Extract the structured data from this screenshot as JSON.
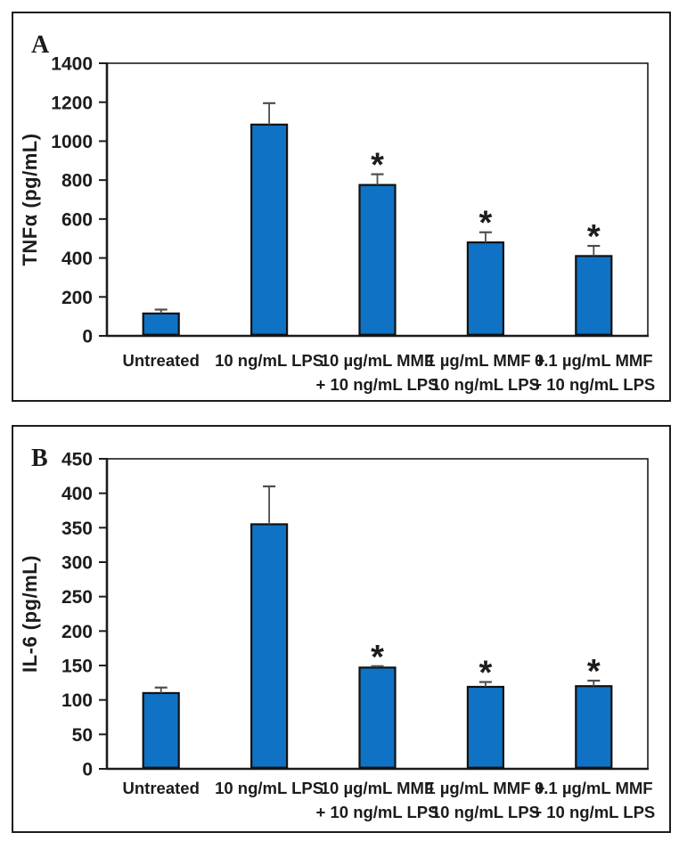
{
  "figure_description": "Two-panel bar chart figure",
  "chart_data": [
    {
      "type": "bar",
      "panel_label": "A",
      "title": "",
      "xlabel": "",
      "ylabel": "TNFα (pg/mL)",
      "ylim": [
        0,
        1400
      ],
      "yticks": [
        0,
        200,
        400,
        600,
        800,
        1000,
        1200,
        1400
      ],
      "grid": false,
      "legend_position": "none",
      "categories": [
        "Untreated",
        "10 ng/mL LPS",
        "10 µg/mL MMF + 10 ng/mL LPS",
        "1 µg/mL MMF + 10 ng/mL LPS",
        "0.1 µg/mL MMF + 10 ng/mL LPS"
      ],
      "category_lines": [
        [
          "Untreated",
          ""
        ],
        [
          "10 ng/mL LPS",
          ""
        ],
        [
          "10 µg/mL MMF",
          "+ 10 ng/mL LPS"
        ],
        [
          "1 µg/mL MMF +",
          "10 ng/mL LPS"
        ],
        [
          "0.1 µg/mL MMF",
          "+ 10 ng/mL LPS"
        ]
      ],
      "values": [
        115,
        1085,
        775,
        480,
        410
      ],
      "errors": [
        20,
        110,
        55,
        52,
        52
      ],
      "significance": [
        "",
        "",
        "*",
        "*",
        "*"
      ]
    },
    {
      "type": "bar",
      "panel_label": "B",
      "title": "",
      "xlabel": "",
      "ylabel": "IL-6 (pg/mL)",
      "ylim": [
        0,
        450
      ],
      "yticks": [
        0,
        50,
        100,
        150,
        200,
        250,
        300,
        350,
        400,
        450
      ],
      "grid": false,
      "legend_position": "none",
      "categories": [
        "Untreated",
        "10 ng/mL LPS",
        "10 µg/mL MMF + 10 ng/mL LPS",
        "1 µg/mL MMF + 10 ng/mL LPS",
        "0.1 µg/mL MMF + 10 ng/mL LPS"
      ],
      "category_lines": [
        [
          "Untreated",
          ""
        ],
        [
          "10 ng/mL LPS",
          ""
        ],
        [
          "10 µg/mL MMF",
          "+ 10 ng/mL LPS"
        ],
        [
          "1 µg/mL MMF +",
          "10 ng/mL LPS"
        ],
        [
          "0.1 µg/mL MMF",
          "+ 10 ng/mL LPS"
        ]
      ],
      "values": [
        110,
        355,
        147,
        119,
        120
      ],
      "errors": [
        8,
        55,
        2,
        7,
        8
      ],
      "significance": [
        "",
        "",
        "*",
        "*",
        "*"
      ]
    }
  ],
  "style": {
    "bar_fill": "#1072C4",
    "bar_stroke": "#111111",
    "error_bar_color": "#4d4d4d",
    "axis_color": "#1c1c1c",
    "text_color": "#1c1c1c",
    "background": "#ffffff"
  }
}
